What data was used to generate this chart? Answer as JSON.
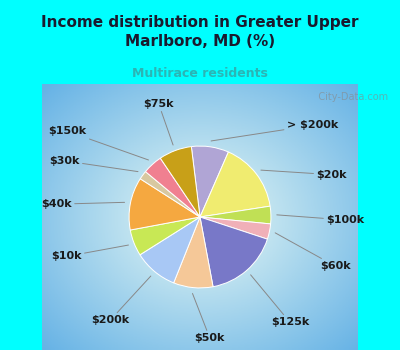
{
  "title": "Income distribution in Greater Upper\nMarlboro, MD (%)",
  "subtitle": "Multirace residents",
  "title_color": "#1a1a2e",
  "subtitle_color": "#2ab5b5",
  "bg_color": "#00ffff",
  "chart_bg_left": "#a8e8d8",
  "chart_bg_center": "#e8f5f0",
  "labels": [
    "> $200k",
    "$20k",
    "$100k",
    "$60k",
    "$125k",
    "$50k",
    "$200k",
    "$10k",
    "$40k",
    "$30k",
    "$150k",
    "$75k"
  ],
  "values": [
    8.5,
    16.0,
    4.0,
    3.5,
    17.0,
    9.0,
    10.0,
    6.0,
    12.0,
    2.0,
    4.5,
    7.5
  ],
  "colors": [
    "#b0a5d5",
    "#f0ec70",
    "#c0e055",
    "#f0b0b8",
    "#7878c8",
    "#f5c898",
    "#a8c8f5",
    "#c8e855",
    "#f5a840",
    "#d8c8a0",
    "#f08090",
    "#c8a018"
  ],
  "label_color": "#1a1a1a",
  "label_fontsize": 8,
  "startangle": 97,
  "watermark": "   City-Data.com"
}
